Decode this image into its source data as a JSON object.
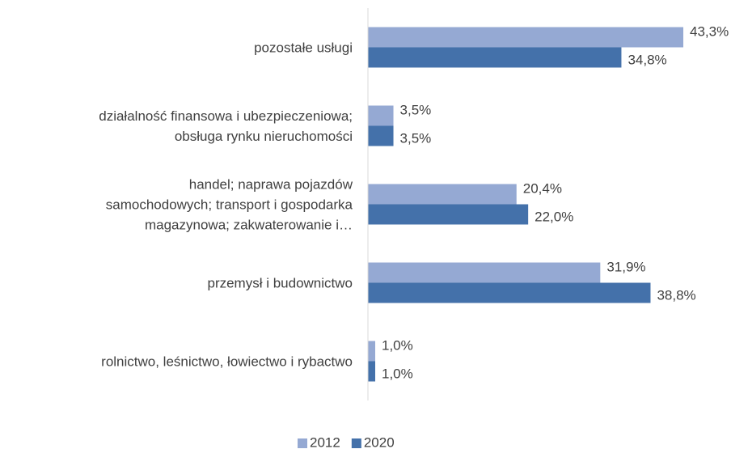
{
  "chart_data": {
    "type": "barh",
    "categories": [
      "pozostałe usługi",
      "działalność finansowa i ubezpieczeniowa;\nobsługa rynku nieruchomości",
      "handel; naprawa pojazdów\nsamochodowych; transport i gospodarka\nmagazynowa; zakwaterowanie i…",
      "przemysł i budownictwo",
      "rolnictwo, leśnictwo, łowiectwo i rybactwo"
    ],
    "series": [
      {
        "name": "2012",
        "color": "#95a9d3",
        "values": [
          43.3,
          3.5,
          20.4,
          31.9,
          1.0
        ],
        "value_labels": [
          "43,3%",
          "3,5%",
          "20,4%",
          "31,9%",
          "1,0%"
        ]
      },
      {
        "name": "2020",
        "color": "#4471aa",
        "values": [
          34.8,
          3.5,
          22.0,
          38.8,
          1.0
        ],
        "value_labels": [
          "34,8%",
          "3,5%",
          "22,0%",
          "38,8%",
          "1,0%"
        ]
      }
    ],
    "legend": "bottom"
  }
}
